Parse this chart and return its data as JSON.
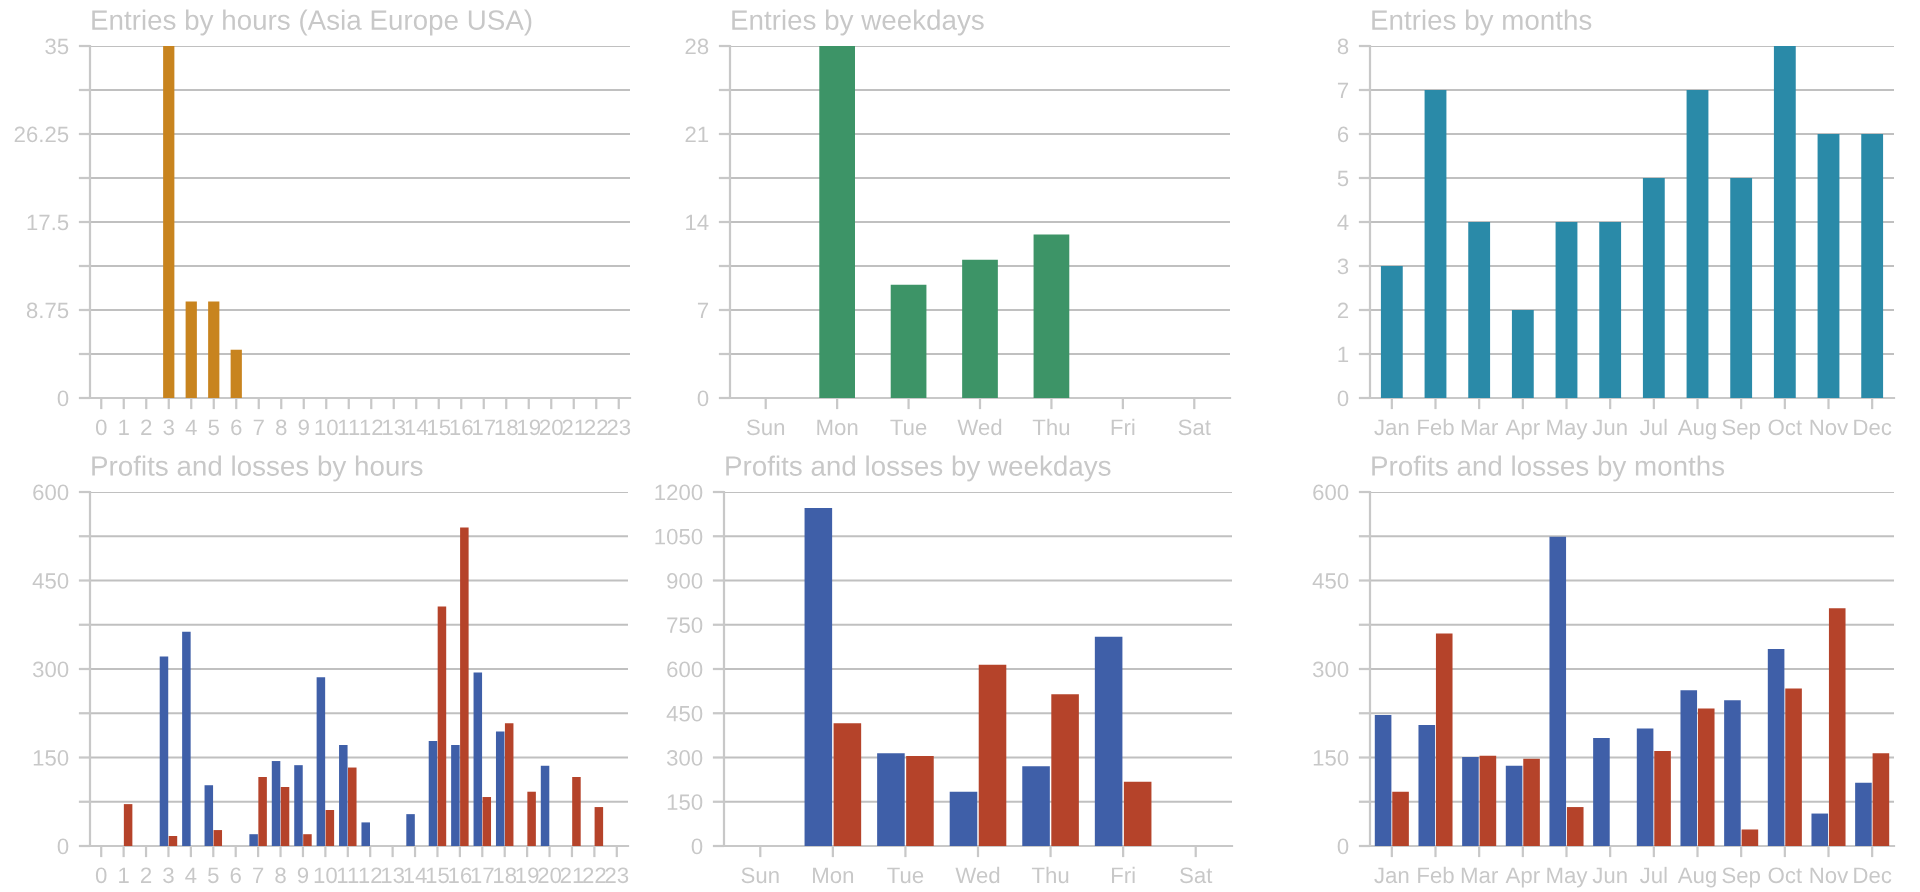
{
  "chart_data": [
    {
      "type": "bar",
      "title": "Entries by hours (Asia Europe USA)",
      "categories": [
        "0",
        "1",
        "2",
        "3",
        "4",
        "5",
        "6",
        "7",
        "8",
        "9",
        "10",
        "11",
        "12",
        "13",
        "14",
        "15",
        "16",
        "17",
        "18",
        "19",
        "20",
        "21",
        "22",
        "23"
      ],
      "series": [
        {
          "color": "#c8841f",
          "values": [
            null,
            null,
            null,
            35,
            9.6,
            9.6,
            4.8,
            null,
            null,
            null,
            null,
            null,
            null,
            null,
            null,
            null,
            null,
            null,
            null,
            null,
            null,
            null,
            null,
            null
          ]
        }
      ],
      "ylim": [
        0,
        35
      ],
      "yticks": [
        0,
        {
          "value": 4.375,
          "label": null
        },
        8.75,
        {
          "value": 13.125,
          "label": null
        },
        17.5,
        {
          "value": 21.875,
          "label": null
        },
        26.25,
        {
          "value": 30.625,
          "label": null
        },
        35
      ],
      "grid": "y"
    },
    {
      "type": "bar",
      "title": "Entries by weekdays",
      "categories": [
        "Sun",
        "Mon",
        "Tue",
        "Wed",
        "Thu",
        "Fri",
        "Sat"
      ],
      "series": [
        {
          "color": "#3d9467",
          "values": [
            null,
            28,
            9,
            11,
            13,
            null,
            null
          ]
        }
      ],
      "ylim": [
        0,
        28
      ],
      "yticks": [
        0,
        {
          "value": 3.5,
          "label": null
        },
        7,
        {
          "value": 10.5,
          "label": null
        },
        14,
        {
          "value": 17.5,
          "label": null
        },
        21,
        {
          "value": 24.5,
          "label": null
        },
        28
      ],
      "grid": "y"
    },
    {
      "type": "bar",
      "title": "Entries by months",
      "categories": [
        "Jan",
        "Feb",
        "Mar",
        "Apr",
        "May",
        "Jun",
        "Jul",
        "Aug",
        "Sep",
        "Oct",
        "Nov",
        "Dec"
      ],
      "series": [
        {
          "color": "#2a8aa8",
          "values": [
            3,
            7,
            4,
            2,
            4,
            4,
            5,
            7,
            5,
            8,
            6,
            6
          ]
        }
      ],
      "ylim": [
        0,
        8
      ],
      "yticks": [
        0,
        1,
        2,
        3,
        4,
        5,
        6,
        7,
        8
      ],
      "grid": "y"
    },
    {
      "type": "bar",
      "title": "Profits and losses by hours",
      "categories": [
        "0",
        "1",
        "2",
        "3",
        "4",
        "5",
        "6",
        "7",
        "8",
        "9",
        "10",
        "11",
        "12",
        "13",
        "14",
        "15",
        "16",
        "17",
        "18",
        "19",
        "20",
        "21",
        "22",
        "23"
      ],
      "series": [
        {
          "color": "#3f5fa8",
          "values": [
            null,
            null,
            null,
            321,
            363,
            103,
            null,
            20,
            144,
            137,
            286,
            171,
            40,
            null,
            54,
            178,
            171,
            294,
            194,
            null,
            136,
            null,
            null,
            null
          ]
        },
        {
          "color": "#b5432a",
          "values": [
            null,
            71,
            null,
            17,
            null,
            27,
            null,
            117,
            100,
            20,
            61,
            133,
            null,
            null,
            null,
            406,
            540,
            83,
            208,
            92,
            null,
            117,
            66,
            null
          ]
        }
      ],
      "ylim": [
        0,
        600
      ],
      "yticks": [
        0,
        {
          "value": 75,
          "label": null
        },
        150,
        {
          "value": 225,
          "label": null
        },
        300,
        {
          "value": 375,
          "label": null
        },
        450,
        {
          "value": 525,
          "label": null
        },
        600
      ],
      "grid": "y"
    },
    {
      "type": "bar",
      "title": "Profits and losses by weekdays",
      "categories": [
        "Sun",
        "Mon",
        "Tue",
        "Wed",
        "Thu",
        "Fri",
        "Sat"
      ],
      "series": [
        {
          "color": "#3f5fa8",
          "values": [
            null,
            1146,
            314,
            184,
            270,
            709,
            null
          ]
        },
        {
          "color": "#b5432a",
          "values": [
            null,
            416,
            305,
            614,
            514,
            218,
            null
          ]
        }
      ],
      "ylim": [
        0,
        1200
      ],
      "yticks": [
        0,
        150,
        300,
        450,
        600,
        750,
        900,
        1050,
        1200
      ],
      "grid": "y"
    },
    {
      "type": "bar",
      "title": "Profits and losses by months",
      "categories": [
        "Jan",
        "Feb",
        "Mar",
        "Apr",
        "May",
        "Jun",
        "Jul",
        "Aug",
        "Sep",
        "Oct",
        "Nov",
        "Dec"
      ],
      "series": [
        {
          "color": "#3f5fa8",
          "values": [
            222,
            205,
            151,
            136,
            524,
            183,
            199,
            264,
            247,
            334,
            55,
            107
          ]
        },
        {
          "color": "#b5432a",
          "values": [
            92,
            360,
            153,
            148,
            66,
            null,
            161,
            233,
            28,
            267,
            403,
            157
          ]
        }
      ],
      "ylim": [
        0,
        600
      ],
      "yticks": [
        0,
        {
          "value": 75,
          "label": null
        },
        150,
        {
          "value": 225,
          "label": null
        },
        300,
        {
          "value": 375,
          "label": null
        },
        450,
        {
          "value": 525,
          "label": null
        },
        600
      ],
      "grid": "y"
    }
  ]
}
